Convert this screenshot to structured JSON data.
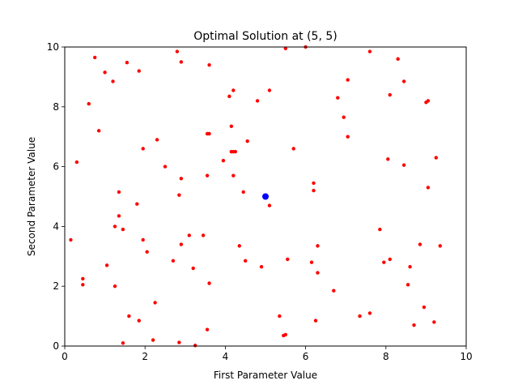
{
  "chart_data": {
    "type": "scatter",
    "title": "Optimal Solution at (5, 5)",
    "xlabel": "First Parameter Value",
    "ylabel": "Second Parameter Value",
    "xlim": [
      0,
      10
    ],
    "ylim": [
      0,
      10
    ],
    "xticks": [
      "0",
      "2",
      "4",
      "6",
      "8",
      "10"
    ],
    "yticks": [
      "0",
      "2",
      "4",
      "6",
      "8",
      "10"
    ],
    "grid": false,
    "series": [
      {
        "color": "#ff0000",
        "points": [
          [
            0.75,
            9.65
          ],
          [
            1.0,
            9.15
          ],
          [
            1.2,
            8.85
          ],
          [
            1.55,
            9.48
          ],
          [
            1.85,
            9.2
          ],
          [
            2.8,
            9.85
          ],
          [
            2.9,
            9.5
          ],
          [
            3.6,
            9.4
          ],
          [
            5.5,
            9.95
          ],
          [
            6.0,
            10.0
          ],
          [
            7.6,
            9.85
          ],
          [
            8.3,
            9.6
          ],
          [
            0.6,
            8.1
          ],
          [
            4.1,
            8.35
          ],
          [
            4.2,
            8.55
          ],
          [
            4.8,
            8.2
          ],
          [
            5.1,
            8.55
          ],
          [
            6.8,
            8.3
          ],
          [
            7.05,
            8.9
          ],
          [
            8.1,
            8.4
          ],
          [
            8.45,
            8.85
          ],
          [
            9.0,
            8.15
          ],
          [
            9.05,
            8.2
          ],
          [
            0.85,
            7.2
          ],
          [
            4.15,
            7.35
          ],
          [
            3.55,
            7.1
          ],
          [
            3.6,
            7.1
          ],
          [
            6.95,
            7.65
          ],
          [
            2.3,
            6.9
          ],
          [
            4.55,
            6.85
          ],
          [
            7.05,
            7.0
          ],
          [
            0.3,
            6.15
          ],
          [
            1.95,
            6.6
          ],
          [
            4.15,
            6.5
          ],
          [
            4.2,
            6.5
          ],
          [
            4.25,
            6.5
          ],
          [
            3.95,
            6.2
          ],
          [
            5.7,
            6.6
          ],
          [
            8.05,
            6.25
          ],
          [
            9.25,
            6.3
          ],
          [
            2.5,
            6.0
          ],
          [
            8.45,
            6.05
          ],
          [
            2.9,
            5.6
          ],
          [
            3.55,
            5.7
          ],
          [
            4.2,
            5.7
          ],
          [
            1.35,
            5.15
          ],
          [
            2.85,
            5.05
          ],
          [
            4.45,
            5.15
          ],
          [
            6.2,
            5.45
          ],
          [
            6.2,
            5.2
          ],
          [
            9.05,
            5.3
          ],
          [
            1.8,
            4.75
          ],
          [
            5.1,
            4.7
          ],
          [
            1.35,
            4.35
          ],
          [
            1.25,
            4.0
          ],
          [
            1.45,
            3.9
          ],
          [
            7.85,
            3.9
          ],
          [
            0.15,
            3.55
          ],
          [
            1.95,
            3.55
          ],
          [
            3.1,
            3.7
          ],
          [
            3.45,
            3.7
          ],
          [
            2.9,
            3.4
          ],
          [
            4.35,
            3.35
          ],
          [
            6.3,
            3.35
          ],
          [
            8.85,
            3.4
          ],
          [
            9.35,
            3.35
          ],
          [
            2.05,
            3.15
          ],
          [
            2.7,
            2.85
          ],
          [
            4.5,
            2.85
          ],
          [
            5.55,
            2.9
          ],
          [
            6.15,
            2.8
          ],
          [
            8.1,
            2.9
          ],
          [
            7.95,
            2.8
          ],
          [
            1.05,
            2.7
          ],
          [
            3.2,
            2.6
          ],
          [
            4.9,
            2.65
          ],
          [
            8.6,
            2.65
          ],
          [
            6.3,
            2.45
          ],
          [
            0.45,
            2.25
          ],
          [
            0.45,
            2.05
          ],
          [
            1.25,
            2.0
          ],
          [
            3.6,
            2.1
          ],
          [
            8.55,
            2.05
          ],
          [
            6.7,
            1.85
          ],
          [
            2.25,
            1.45
          ],
          [
            8.95,
            1.3
          ],
          [
            7.6,
            1.1
          ],
          [
            1.6,
            1.0
          ],
          [
            5.35,
            1.0
          ],
          [
            7.35,
            1.0
          ],
          [
            1.85,
            0.85
          ],
          [
            6.25,
            0.85
          ],
          [
            8.7,
            0.7
          ],
          [
            9.2,
            0.8
          ],
          [
            3.55,
            0.55
          ],
          [
            5.45,
            0.35
          ],
          [
            5.5,
            0.38
          ],
          [
            2.2,
            0.2
          ],
          [
            1.45,
            0.1
          ],
          [
            2.85,
            0.12
          ],
          [
            3.25,
            0.02
          ]
        ]
      },
      {
        "color": "#0000ff",
        "points": [
          [
            5,
            5
          ]
        ]
      }
    ]
  }
}
